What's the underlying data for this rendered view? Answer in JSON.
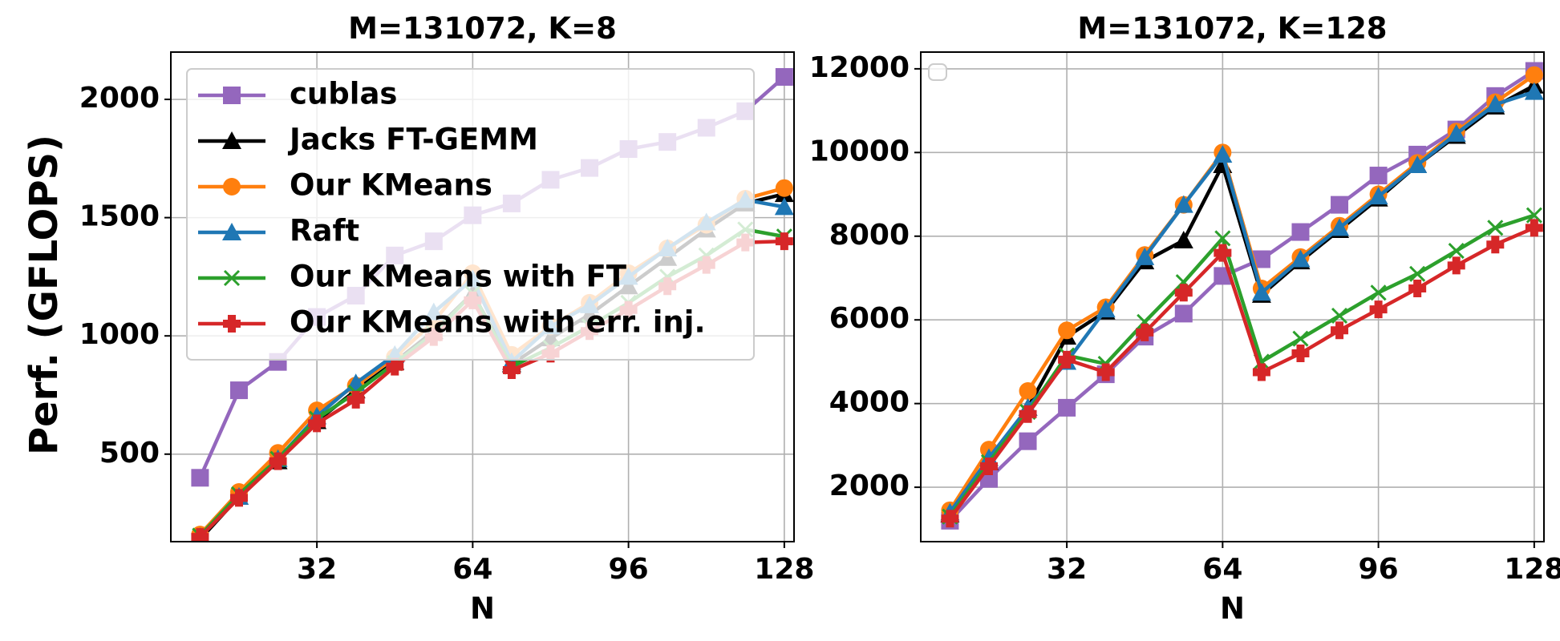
{
  "figure": {
    "ylabel": "Perf. (GFLOPS)"
  },
  "chart_data": [
    {
      "type": "line",
      "title": "M=131072, K=8",
      "xlabel": "N",
      "ylabel": "Perf. (GFLOPS)",
      "xlim": [
        2,
        130
      ],
      "ylim": [
        130,
        2200
      ],
      "xticks": [
        32,
        64,
        96,
        128
      ],
      "yticks": [
        500,
        1000,
        1500,
        2000
      ],
      "grid": true,
      "legend": "upper-left",
      "x": [
        8,
        16,
        24,
        32,
        40,
        48,
        56,
        64,
        72,
        80,
        88,
        96,
        104,
        112,
        120,
        128
      ],
      "series": [
        {
          "name": "cublas",
          "color": "#9467bd",
          "marker": "square",
          "values": [
            400,
            770,
            890,
            1080,
            1170,
            1340,
            1400,
            1510,
            1560,
            1660,
            1710,
            1790,
            1820,
            1880,
            1950,
            2095
          ]
        },
        {
          "name": "Jacks FT-GEMM",
          "color": "#000000",
          "marker": "triangle",
          "values": [
            140,
            320,
            470,
            640,
            770,
            890,
            1020,
            1180,
            880,
            990,
            1090,
            1210,
            1330,
            1450,
            1560,
            1600
          ]
        },
        {
          "name": "Our KMeans",
          "color": "#ff7f0e",
          "marker": "circle",
          "values": [
            160,
            340,
            505,
            685,
            790,
            910,
            1060,
            1265,
            920,
            1040,
            1140,
            1265,
            1370,
            1470,
            1580,
            1625
          ]
        },
        {
          "name": "Raft",
          "color": "#1f77b4",
          "marker": "triangle",
          "values": [
            150,
            320,
            480,
            660,
            800,
            920,
            1100,
            1240,
            890,
            1040,
            1130,
            1250,
            1370,
            1480,
            1575,
            1545
          ]
        },
        {
          "name": "Our KMeans with FT",
          "color": "#2ca02c",
          "marker": "x",
          "values": [
            155,
            330,
            480,
            650,
            760,
            885,
            1010,
            1180,
            870,
            950,
            1040,
            1140,
            1250,
            1340,
            1450,
            1420
          ]
        },
        {
          "name": "Our KMeans with err. inj.",
          "color": "#d62728",
          "marker": "plus",
          "values": [
            150,
            315,
            470,
            630,
            730,
            870,
            995,
            1150,
            855,
            925,
            1020,
            1110,
            1210,
            1300,
            1395,
            1400
          ]
        }
      ]
    },
    {
      "type": "line",
      "title": "M=131072, K=128",
      "xlabel": "N",
      "xlim": [
        2,
        130
      ],
      "ylim": [
        700,
        12400
      ],
      "xticks": [
        32,
        64,
        96,
        128
      ],
      "yticks": [
        2000,
        4000,
        6000,
        8000,
        10000,
        12000
      ],
      "grid": true,
      "legend": "upper-left (empty)",
      "x": [
        8,
        16,
        24,
        32,
        40,
        48,
        56,
        64,
        72,
        80,
        88,
        96,
        104,
        112,
        120,
        128
      ],
      "series": [
        {
          "name": "cublas",
          "color": "#9467bd",
          "marker": "square",
          "values": [
            1200,
            2200,
            3100,
            3900,
            4700,
            5600,
            6150,
            7050,
            7450,
            8100,
            8750,
            9450,
            9950,
            10550,
            11350,
            11950
          ]
        },
        {
          "name": "Jacks FT-GEMM",
          "color": "#000000",
          "marker": "triangle",
          "values": [
            1350,
            2600,
            3900,
            5600,
            6200,
            7400,
            7900,
            9700,
            6600,
            7400,
            8150,
            8900,
            9700,
            10400,
            11100,
            11600
          ]
        },
        {
          "name": "Our KMeans",
          "color": "#ff7f0e",
          "marker": "circle",
          "values": [
            1450,
            2900,
            4300,
            5750,
            6300,
            7550,
            8750,
            10000,
            6750,
            7500,
            8250,
            9000,
            9750,
            10500,
            11200,
            11850
          ]
        },
        {
          "name": "Raft",
          "color": "#1f77b4",
          "marker": "triangle",
          "values": [
            1400,
            2700,
            3900,
            5000,
            6250,
            7500,
            8750,
            9950,
            6650,
            7450,
            8200,
            8950,
            9700,
            10450,
            11150,
            11450
          ]
        },
        {
          "name": "Our KMeans with FT",
          "color": "#2ca02c",
          "marker": "x",
          "values": [
            1300,
            2600,
            3800,
            5150,
            4950,
            5950,
            6900,
            7950,
            5000,
            5550,
            6100,
            6650,
            7100,
            7650,
            8200,
            8500
          ]
        },
        {
          "name": "Our KMeans with err. inj.",
          "color": "#d62728",
          "marker": "plus",
          "values": [
            1250,
            2500,
            3750,
            5050,
            4750,
            5700,
            6650,
            7600,
            4750,
            5200,
            5750,
            6250,
            6750,
            7300,
            7800,
            8200
          ]
        }
      ]
    }
  ]
}
